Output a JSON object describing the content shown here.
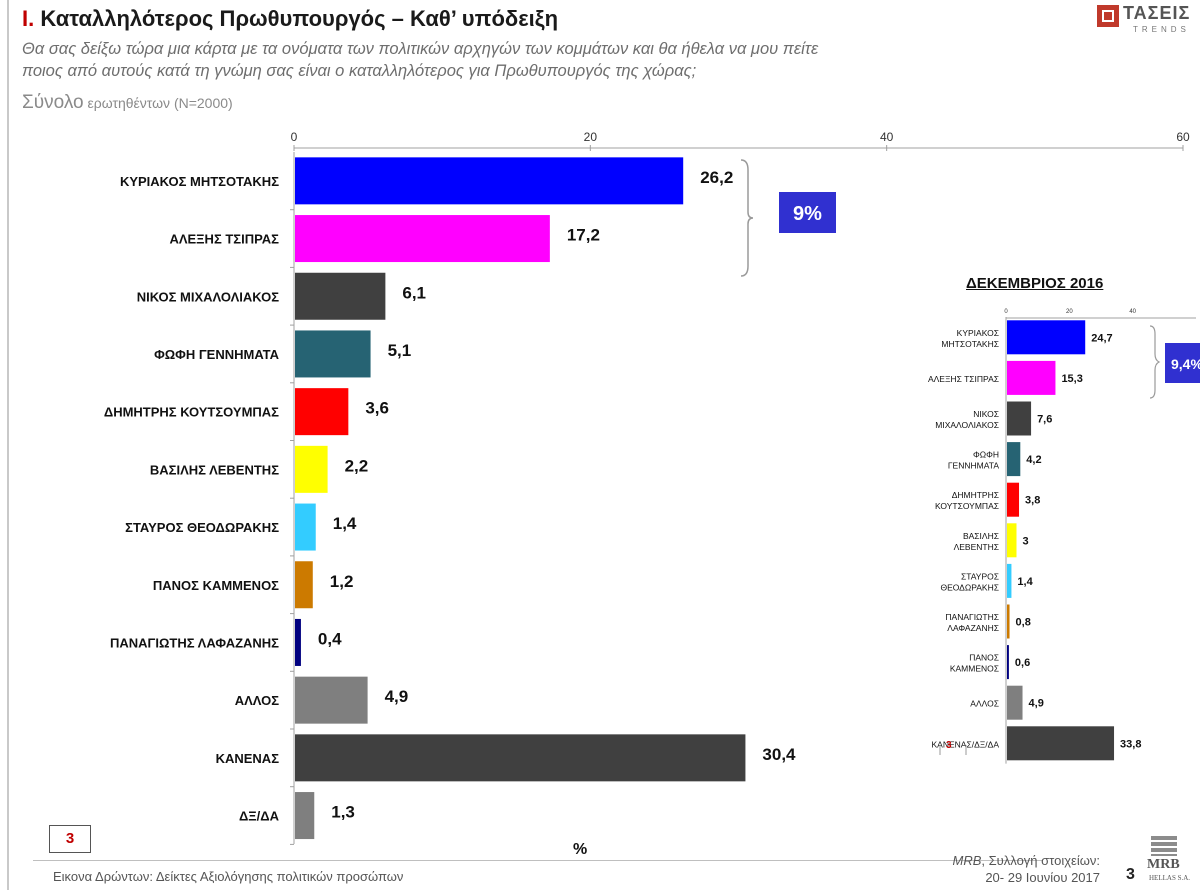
{
  "header": {
    "roman": "I.",
    "title": "Καταλληλότερος  Πρωθυπουργός – Καθ’ υπόδειξη",
    "subtitle_line1": "Θα σας δείξω τώρα μια κάρτα με τα ονόματα των πολιτικών αρχηγών των κομμάτων και θα ήθελα να μου πείτε",
    "subtitle_line2": "ποιος από αυτούς κατά τη γνώμη σας είναι ο καταλληλότερος για Πρωθυπουργός της χώρας;",
    "base_big": "Σύνολο",
    "base_small": " ερωτηθέντων (Ν=2000)"
  },
  "logo": {
    "name": "ΤΑΣΕΙΣ",
    "sub": "TRENDS"
  },
  "chart_data": [
    {
      "type": "bar",
      "orientation": "horizontal",
      "categories": [
        "ΚΥΡΙΑΚΟΣ  ΜΗΤΣΟΤΑΚΗΣ",
        "ΑΛΕΞΗΣ ΤΣΙΠΡΑΣ",
        "ΝΙΚΟΣ  ΜΙΧΑΛΟΛΙΑΚΟΣ",
        "ΦΩΦΗ ΓΕΝΝΗΜΑΤΑ",
        "ΔΗΜΗΤΡΗΣ ΚΟΥΤΣΟΥΜΠΑΣ",
        "ΒΑΣΙΛΗΣ ΛΕΒΕΝΤΗΣ",
        "ΣΤΑΥΡΟΣ ΘΕΟΔΩΡΑΚΗΣ",
        "ΠΑΝΟΣ ΚΑΜΜΕΝΟΣ",
        "ΠΑΝΑΓΙΩΤΗΣ ΛΑΦΑΖΑΝΗΣ",
        "ΑΛΛΟΣ",
        "ΚΑΝΕΝΑΣ",
        "ΔΞ/ΔΑ"
      ],
      "values": [
        26.2,
        17.2,
        6.1,
        5.1,
        3.6,
        2.2,
        1.4,
        1.2,
        0.4,
        4.9,
        30.4,
        1.3
      ],
      "labels": [
        "26,2",
        "17,2",
        "6,1",
        "5,1",
        "3,6",
        "2,2",
        "1,4",
        "1,2",
        "0,4",
        "4,9",
        "30,4",
        "1,3"
      ],
      "colors": [
        "#0000ff",
        "#ff00ff",
        "#404040",
        "#266373",
        "#ff0000",
        "#ffff00",
        "#33ccff",
        "#cc7a00",
        "#000080",
        "#7f7f7f",
        "#404040",
        "#7f7f7f"
      ],
      "xlim": [
        0,
        60
      ],
      "xticks": [
        "0",
        "20",
        "40",
        "60"
      ],
      "xlabel": "%",
      "gap_label": "9%",
      "gap_color": "#3030d0"
    },
    {
      "type": "bar",
      "orientation": "horizontal",
      "title": "ΔΕΚΕΜΒΡΙΟΣ 2016",
      "categories": [
        [
          "ΚΥΡΙΑΚΟΣ",
          "ΜΗΤΣΟΤΑΚΗΣ"
        ],
        [
          "ΑΛΕΞΗΣ ΤΣΙΠΡΑΣ"
        ],
        [
          "ΝΙΚΟΣ",
          "ΜΙΧΑΛΟΛΙΑΚΟΣ"
        ],
        [
          "ΦΩΦΗ",
          "ΓΕΝΝΗΜΑΤΑ"
        ],
        [
          "ΔΗΜΗΤΡΗΣ",
          "ΚΟΥΤΣΟΥΜΠΑΣ"
        ],
        [
          "ΒΑΣΙΛΗΣ",
          "ΛΕΒΕΝΤΗΣ"
        ],
        [
          "ΣΤΑΥΡΟΣ",
          "ΘΕΟΔΩΡΑΚΗΣ"
        ],
        [
          "ΠΑΝΑΓΙΩΤΗΣ",
          "ΛΑΦΑΖΑΝΗΣ"
        ],
        [
          "ΠΑΝΟΣ",
          "ΚΑΜΜΕΝΟΣ"
        ],
        [
          "ΑΛΛΟΣ"
        ],
        [
          "ΚΑΝΕΝΑΣ/ΔΞ/ΔΑ"
        ]
      ],
      "values": [
        24.7,
        15.3,
        7.6,
        4.2,
        3.8,
        3,
        1.4,
        0.8,
        0.6,
        4.9,
        33.8
      ],
      "labels": [
        "24,7",
        "15,3",
        "7,6",
        "4,2",
        "3,8",
        "3",
        "1,4",
        "0,8",
        "0,6",
        "4,9",
        "33,8"
      ],
      "colors": [
        "#0000ff",
        "#ff00ff",
        "#404040",
        "#266373",
        "#ff0000",
        "#ffff00",
        "#33ccff",
        "#cc7a00",
        "#000080",
        "#7f7f7f",
        "#404040"
      ],
      "xlim": [
        0,
        60
      ],
      "xticks": [
        "0",
        "20",
        "40"
      ],
      "gap_label": "9,4%",
      "gap_color": "#3030d0"
    }
  ],
  "inset_page": "3",
  "page_box": "3",
  "footer": {
    "left": "Εικονα Δρώντων: Δείκτες Αξιολόγησης πολιτικών προσώπων",
    "right_line1_italic": "MRB",
    "right_line1_rest": ", Συλλογή στοιχείων:",
    "right_line2": "20- 29 Ιουνίου 2017",
    "page": "3"
  },
  "mrb_logo": {
    "name": "MRB",
    "sub": "HELLAS S.A."
  }
}
